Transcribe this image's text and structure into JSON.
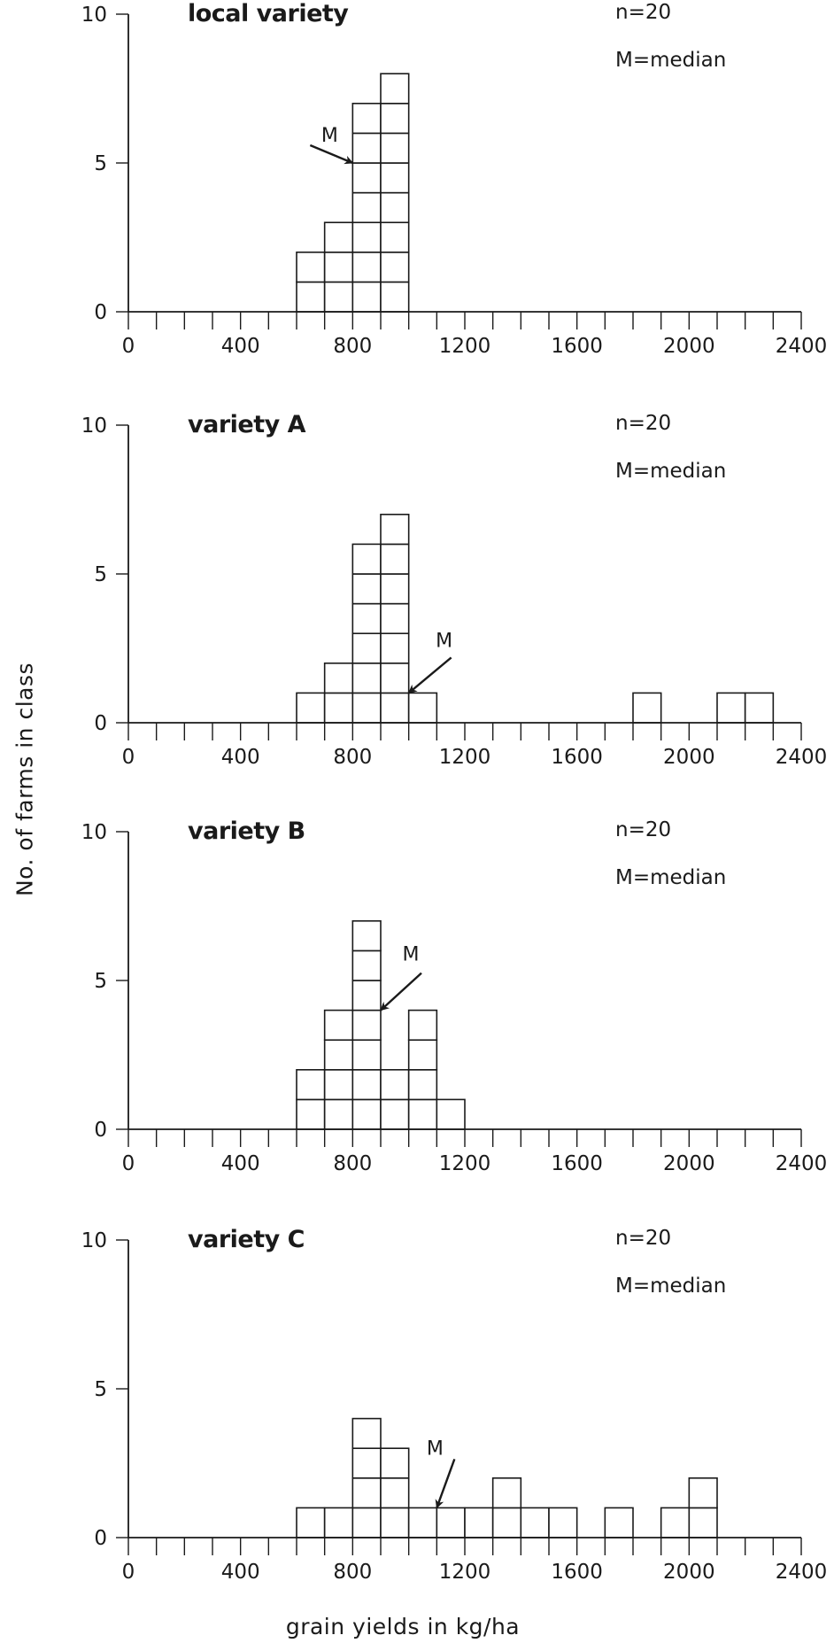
{
  "figure": {
    "ylabel": "No. of farms in class",
    "xlabel": "grain yields in kg/ha"
  },
  "chart_data": [
    {
      "type": "bar",
      "title": "local variety",
      "annotations": [
        "n=20",
        "M=median"
      ],
      "median_marker": {
        "label": "M",
        "x": 800,
        "y": 5
      },
      "bin_width": 100,
      "x_ticks": [
        0,
        400,
        800,
        1200,
        1600,
        2000,
        2400
      ],
      "y_ticks": [
        0,
        5,
        10
      ],
      "xlim": [
        0,
        2400
      ],
      "ylim": [
        0,
        10
      ],
      "bins": [
        {
          "x": 600,
          "count": 2
        },
        {
          "x": 700,
          "count": 3
        },
        {
          "x": 800,
          "count": 7
        },
        {
          "x": 900,
          "count": 8
        }
      ]
    },
    {
      "type": "bar",
      "title": "variety A",
      "annotations": [
        "n=20",
        "M=median"
      ],
      "median_marker": {
        "label": "M",
        "x": 1000,
        "y": 1
      },
      "bin_width": 100,
      "x_ticks": [
        0,
        400,
        800,
        1200,
        1600,
        2000,
        2400
      ],
      "y_ticks": [
        0,
        5,
        10
      ],
      "xlim": [
        0,
        2400
      ],
      "ylim": [
        0,
        10
      ],
      "bins": [
        {
          "x": 600,
          "count": 1
        },
        {
          "x": 700,
          "count": 2
        },
        {
          "x": 800,
          "count": 6
        },
        {
          "x": 900,
          "count": 7
        },
        {
          "x": 1000,
          "count": 1
        },
        {
          "x": 1800,
          "count": 1
        },
        {
          "x": 2100,
          "count": 1
        },
        {
          "x": 2200,
          "count": 1
        }
      ]
    },
    {
      "type": "bar",
      "title": "variety B",
      "annotations": [
        "n=20",
        "M=median"
      ],
      "median_marker": {
        "label": "M",
        "x": 900,
        "y": 4
      },
      "bin_width": 100,
      "x_ticks": [
        0,
        400,
        800,
        1200,
        1600,
        2000,
        2400
      ],
      "y_ticks": [
        0,
        5,
        10
      ],
      "xlim": [
        0,
        2400
      ],
      "ylim": [
        0,
        10
      ],
      "bins": [
        {
          "x": 600,
          "count": 2
        },
        {
          "x": 700,
          "count": 4
        },
        {
          "x": 800,
          "count": 7
        },
        {
          "x": 900,
          "count": 2
        },
        {
          "x": 1000,
          "count": 4
        },
        {
          "x": 1100,
          "count": 1
        }
      ]
    },
    {
      "type": "bar",
      "title": "variety C",
      "annotations": [
        "n=20",
        "M=median"
      ],
      "median_marker": {
        "label": "M",
        "x": 1100,
        "y": 1
      },
      "bin_width": 100,
      "x_ticks": [
        0,
        400,
        800,
        1200,
        1600,
        2000,
        2400
      ],
      "y_ticks": [
        0,
        5,
        10
      ],
      "xlim": [
        0,
        2400
      ],
      "ylim": [
        0,
        10
      ],
      "bins": [
        {
          "x": 600,
          "count": 1
        },
        {
          "x": 700,
          "count": 1
        },
        {
          "x": 800,
          "count": 4
        },
        {
          "x": 900,
          "count": 3
        },
        {
          "x": 1000,
          "count": 1
        },
        {
          "x": 1100,
          "count": 1
        },
        {
          "x": 1200,
          "count": 1
        },
        {
          "x": 1300,
          "count": 2
        },
        {
          "x": 1400,
          "count": 1
        },
        {
          "x": 1500,
          "count": 1
        },
        {
          "x": 1700,
          "count": 1
        },
        {
          "x": 1900,
          "count": 1
        },
        {
          "x": 2000,
          "count": 2
        }
      ]
    }
  ]
}
